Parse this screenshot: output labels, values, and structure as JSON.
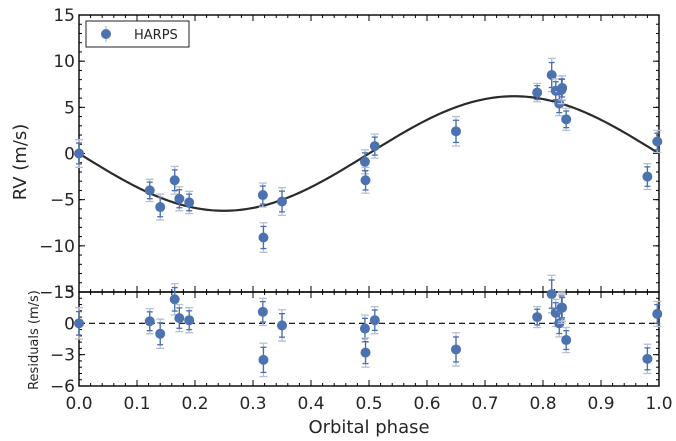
{
  "chart_data": [
    {
      "type": "scatter",
      "panel": "rv",
      "ylabel": "RV (m/s)",
      "xlabel": "",
      "xlim": [
        0.0,
        1.0
      ],
      "ylim": [
        -15,
        15
      ],
      "yticks": [
        15,
        10,
        5,
        0,
        -5,
        -10,
        -15
      ],
      "legend": {
        "label": "HARPS",
        "placement": "top-left"
      },
      "colors": {
        "points": "#4c72b0",
        "model": "#2b2b2b",
        "errorbar_outer": "#b7bfd0"
      },
      "model": {
        "type": "sinusoid",
        "amplitude": 6.2,
        "phase_zero": 0.0,
        "period": 1.0
      },
      "series": [
        {
          "name": "HARPS",
          "x": [
            0.0,
            0.122,
            0.14,
            0.165,
            0.173,
            0.19,
            0.317,
            0.318,
            0.35,
            0.493,
            0.494,
            0.51,
            0.65,
            0.79,
            0.815,
            0.822,
            0.828,
            0.832,
            0.833,
            0.84,
            0.98,
            0.997
          ],
          "y": [
            0.0,
            -4.0,
            -5.8,
            -2.9,
            -4.9,
            -5.3,
            -4.5,
            -9.1,
            -5.2,
            -0.9,
            -2.9,
            0.8,
            2.4,
            6.6,
            8.5,
            6.8,
            5.4,
            6.9,
            7.1,
            3.7,
            -2.5,
            1.3
          ],
          "err": [
            1.5,
            1.2,
            1.4,
            1.5,
            1.3,
            1.2,
            1.3,
            1.6,
            1.5,
            1.3,
            1.4,
            1.3,
            1.6,
            1.0,
            1.8,
            1.3,
            1.3,
            1.5,
            1.3,
            1.2,
            1.4,
            1.2
          ]
        }
      ]
    },
    {
      "type": "scatter",
      "panel": "residuals",
      "ylabel": "Residuals (m/s)",
      "xlabel": "Orbital phase",
      "xlim": [
        0.0,
        1.0
      ],
      "ylim": [
        -6,
        3
      ],
      "yticks": [
        3,
        0,
        -3,
        -6
      ],
      "xticks": [
        "0.0",
        "0.1",
        "0.2",
        "0.3",
        "0.4",
        "0.5",
        "0.6",
        "0.7",
        "0.8",
        "0.9",
        "1.0"
      ],
      "series": [
        {
          "name": "HARPS",
          "x": [
            0.0,
            0.122,
            0.14,
            0.165,
            0.173,
            0.19,
            0.317,
            0.318,
            0.35,
            0.493,
            0.494,
            0.51,
            0.65,
            0.79,
            0.815,
            0.822,
            0.828,
            0.832,
            0.833,
            0.84,
            0.98,
            0.997
          ],
          "y": [
            0.0,
            0.2,
            -1.0,
            2.3,
            0.5,
            0.3,
            1.1,
            -3.5,
            -0.2,
            -0.5,
            -2.8,
            0.3,
            -2.5,
            0.6,
            2.8,
            1.0,
            0.0,
            1.5,
            1.5,
            -1.6,
            -3.4,
            0.9
          ],
          "err": [
            1.5,
            1.2,
            1.4,
            1.5,
            1.3,
            1.2,
            1.3,
            1.6,
            1.5,
            1.3,
            1.4,
            1.3,
            1.6,
            1.0,
            1.8,
            1.3,
            1.3,
            1.5,
            1.3,
            1.2,
            1.4,
            1.2
          ]
        }
      ]
    }
  ]
}
